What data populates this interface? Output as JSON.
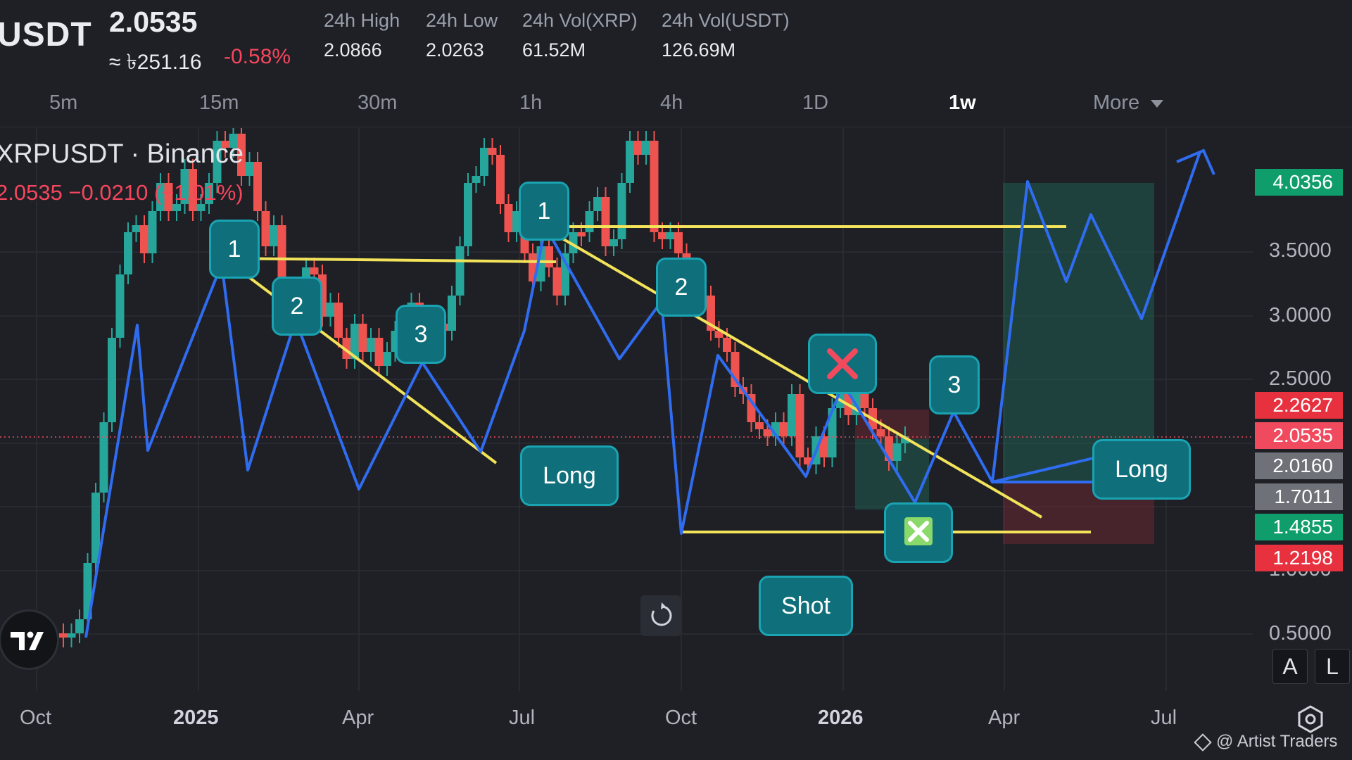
{
  "header": {
    "symbol": "USDT",
    "price": "2.0535",
    "approx_price": "≈ ৳251.16",
    "change_pct": "-0.58%",
    "stats": [
      {
        "label": "24h High",
        "value": "2.0866"
      },
      {
        "label": "24h Low",
        "value": "2.0263"
      },
      {
        "label": "24h Vol(XRP)",
        "value": "61.52M"
      },
      {
        "label": "24h Vol(USDT)",
        "value": "126.69M"
      }
    ]
  },
  "timeframes": {
    "items": [
      "5m",
      "15m",
      "30m",
      "1h",
      "4h",
      "1D",
      "1w",
      "More"
    ],
    "active": "1w"
  },
  "chart": {
    "title": "XRPUSDT · Binance",
    "ohlc": "2.0535  −0.0210 (−1.01%)",
    "price_axis": [
      "3.5000",
      "3.0000",
      "2.5000",
      "1.0000",
      "0.5000"
    ],
    "price_tags": [
      {
        "value": "4.0356",
        "color": "#0f9d6b"
      },
      {
        "value": "2.2627",
        "color": "#e8313f"
      },
      {
        "value": "2.0535",
        "color": "#f04a5e"
      },
      {
        "value": "2.0160",
        "color": "#6e7178"
      },
      {
        "value": "1.7011",
        "color": "#6e7178"
      },
      {
        "value": "1.4855",
        "color": "#0f9d6b"
      },
      {
        "value": "1.2198",
        "color": "#e8313f"
      }
    ],
    "time_axis": [
      "Oct",
      "2025",
      "Apr",
      "Jul",
      "Oct",
      "2026",
      "Apr",
      "Jul"
    ],
    "annotations": {
      "wave_labels": [
        "1",
        "2",
        "3",
        "1",
        "2",
        "3"
      ],
      "long_1": "Long",
      "long_2": "Long",
      "shot": "Shot"
    },
    "colors": {
      "up": "#26a69a",
      "down": "#ef5350",
      "wave": "#2f6cf0",
      "trend": "#f2e35a",
      "label_bg": "#0f6f7a"
    }
  },
  "controls": {
    "auto": "A",
    "log": "L"
  },
  "watermark": "@ Artist Traders"
}
